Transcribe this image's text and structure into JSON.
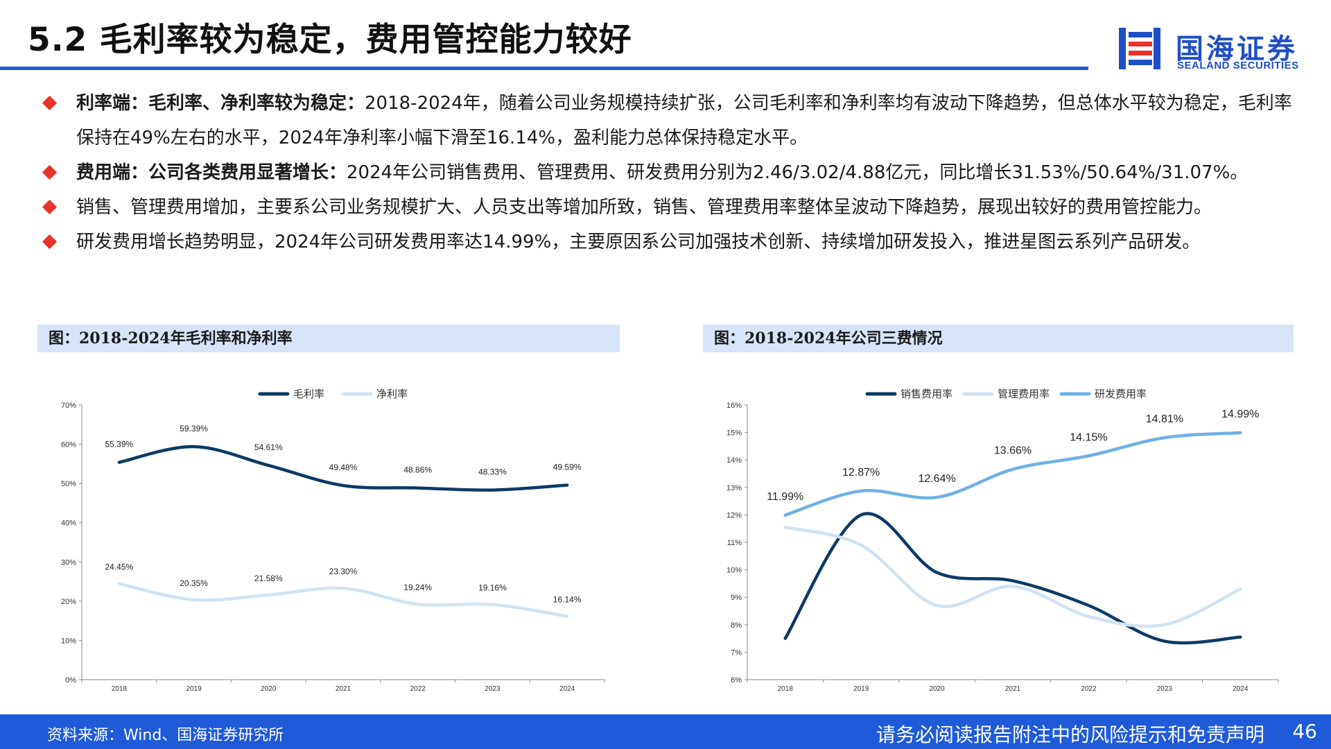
{
  "title": "5.2 毛利率较为稳定，费用管控能力较好",
  "logo": {
    "cn": "国海证券",
    "en": "SEALAND SECURITIES"
  },
  "colors": {
    "accent": "#1f5bd8",
    "bullet": "#e8332a",
    "dark_series": "#0d3a66",
    "light_series": "#cfe3f3",
    "mid_series": "#6fb0e6"
  },
  "bullets": [
    {
      "bold": "利率端：毛利率、净利率较为稳定：",
      "text": "2018-2024年，随着公司业务规模持续扩张，公司毛利率和净利率均有波动下降趋势，但总体水平较为稳定，毛利率保持在49%左右的水平，2024年净利率小幅下滑至16.14%，盈利能力总体保持稳定水平。"
    },
    {
      "bold": "费用端：公司各类费用显著增长：",
      "text": "2024年公司销售费用、管理费用、研发费用分别为2.46/3.02/4.88亿元，同比增长31.53%/50.64%/31.07%。"
    },
    {
      "bold": "",
      "text": "销售、管理费用增加，主要系公司业务规模扩大、人员支出等增加所致，销售、管理费用率整体呈波动下降趋势，展现出较好的费用管控能力。"
    },
    {
      "bold": "",
      "text": "研发费用增长趋势明显，2024年公司研发费用率达14.99%，主要原因系公司加强技术创新、持续增加研发投入，推进星图云系列产品研发。"
    }
  ],
  "panels": {
    "left_title": "图：2018-2024年毛利率和净利率",
    "right_title": "图：2018-2024年公司三费情况"
  },
  "chart_data": [
    {
      "type": "line",
      "title": "图：2018-2024年毛利率和净利率",
      "x": [
        "2018",
        "2019",
        "2020",
        "2021",
        "2022",
        "2023",
        "2024"
      ],
      "ylim": [
        0,
        70
      ],
      "yticks": [
        "0%",
        "10%",
        "20%",
        "30%",
        "40%",
        "50%",
        "60%",
        "70%"
      ],
      "legend": "top-center",
      "series": [
        {
          "name": "毛利率",
          "color": "#0d3a66",
          "values": [
            55.39,
            59.39,
            54.61,
            49.48,
            48.86,
            48.33,
            49.59
          ],
          "labels": [
            "55.39%",
            "59.39%",
            "54.61%",
            "49.48%",
            "48.86%",
            "48.33%",
            "49.59%"
          ]
        },
        {
          "name": "净利率",
          "color": "#cfe3f3",
          "values": [
            24.45,
            20.35,
            21.58,
            23.3,
            19.24,
            19.16,
            16.14
          ],
          "labels": [
            "24.45%",
            "20.35%",
            "21.58%",
            "23.30%",
            "19.24%",
            "19.16%",
            "16.14%"
          ]
        }
      ]
    },
    {
      "type": "line",
      "title": "图：2018-2024年公司三费情况",
      "x": [
        "2018",
        "2019",
        "2020",
        "2021",
        "2022",
        "2023",
        "2024"
      ],
      "ylim": [
        6,
        16
      ],
      "yticks": [
        "6%",
        "7%",
        "8%",
        "9%",
        "10%",
        "11%",
        "12%",
        "13%",
        "14%",
        "15%",
        "16%"
      ],
      "legend": "top-center",
      "series": [
        {
          "name": "销售费用率",
          "color": "#0d3a66",
          "values": [
            7.5,
            12.0,
            9.9,
            9.6,
            8.7,
            7.4,
            7.55
          ],
          "labels": []
        },
        {
          "name": "管理费用率",
          "color": "#cfe3f3",
          "values": [
            11.55,
            10.9,
            8.7,
            9.4,
            8.3,
            8.0,
            9.3
          ],
          "labels": []
        },
        {
          "name": "研发费用率",
          "color": "#6fb0e6",
          "values": [
            11.99,
            12.87,
            12.64,
            13.66,
            14.15,
            14.81,
            14.99
          ],
          "labels": [
            "11.99%",
            "12.87%",
            "12.64%",
            "13.66%",
            "14.15%",
            "14.81%",
            "14.99%"
          ]
        }
      ]
    }
  ],
  "footer": {
    "source": "资料来源：Wind、国海证券研究所",
    "note": "请务必阅读报告附注中的风险提示和免责声明",
    "page": "46"
  }
}
